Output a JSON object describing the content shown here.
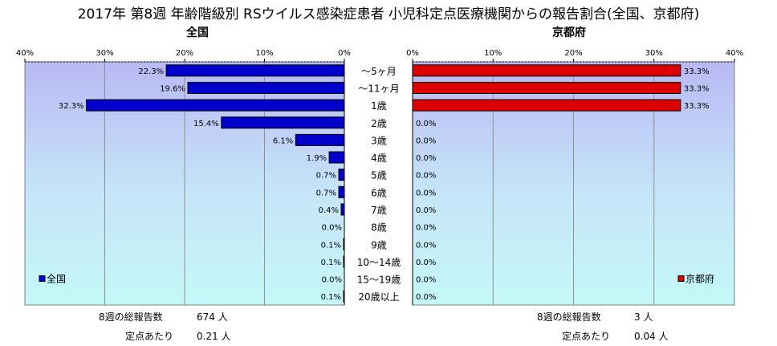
{
  "title": "2017年 第8週 年齢階級別 RSウイルス感染症患者 小児科定点医療機関からの報告割合(全国、京都府)",
  "colors": {
    "national_bar": "#0000cc",
    "kyoto_bar": "#dd0000"
  },
  "chart_data": [
    {
      "type": "bar",
      "orientation": "horizontal",
      "direction": "right-to-left",
      "title": "全国",
      "categories": [
        "～5ヶ月",
        "～11ヶ月",
        "1歳",
        "2歳",
        "3歳",
        "4歳",
        "5歳",
        "6歳",
        "7歳",
        "8歳",
        "9歳",
        "10～14歳",
        "15～19歳",
        "20歳以上"
      ],
      "series": [
        {
          "name": "全国",
          "values": [
            22.3,
            19.6,
            32.3,
            15.4,
            6.1,
            1.9,
            0.7,
            0.7,
            0.4,
            0.0,
            0.1,
            0.1,
            0.0,
            0.1
          ],
          "labels": [
            "22.3%",
            "19.6%",
            "32.3%",
            "15.4%",
            "6.1%",
            "1.9%",
            "0.7%",
            "0.7%",
            "0.4%",
            "0.0%",
            "0.1%",
            "0.1%",
            "0.0%",
            "0.1%"
          ]
        }
      ],
      "ticks": [
        "40%",
        "30%",
        "20%",
        "10%",
        "0%"
      ],
      "xlim": [
        0,
        40
      ],
      "legend": "bottom-left",
      "grid": true
    },
    {
      "type": "bar",
      "orientation": "horizontal",
      "direction": "left-to-right",
      "title": "京都府",
      "categories": [
        "～5ヶ月",
        "～11ヶ月",
        "1歳",
        "2歳",
        "3歳",
        "4歳",
        "5歳",
        "6歳",
        "7歳",
        "8歳",
        "9歳",
        "10～14歳",
        "15～19歳",
        "20歳以上"
      ],
      "series": [
        {
          "name": "京都府",
          "values": [
            33.3,
            33.3,
            33.3,
            0.0,
            0.0,
            0.0,
            0.0,
            0.0,
            0.0,
            0.0,
            0.0,
            0.0,
            0.0,
            0.0
          ],
          "labels": [
            "33.3%",
            "33.3%",
            "33.3%",
            "0.0%",
            "0.0%",
            "0.0%",
            "0.0%",
            "0.0%",
            "0.0%",
            "0.0%",
            "0.0%",
            "0.0%",
            "0.0%",
            "0.0%"
          ]
        }
      ],
      "ticks": [
        "0%",
        "10%",
        "20%",
        "30%",
        "40%"
      ],
      "xlim": [
        0,
        40
      ],
      "legend": "bottom-right",
      "grid": true
    }
  ],
  "footer": {
    "national": {
      "total_label": "8週の総報告数",
      "total_value": "674 人",
      "per_label": "定点あたり",
      "per_value": "0.21 人"
    },
    "kyoto": {
      "total_label": "8週の総報告数",
      "total_value": "3 人",
      "per_label": "定点あたり",
      "per_value": "0.04 人"
    }
  }
}
